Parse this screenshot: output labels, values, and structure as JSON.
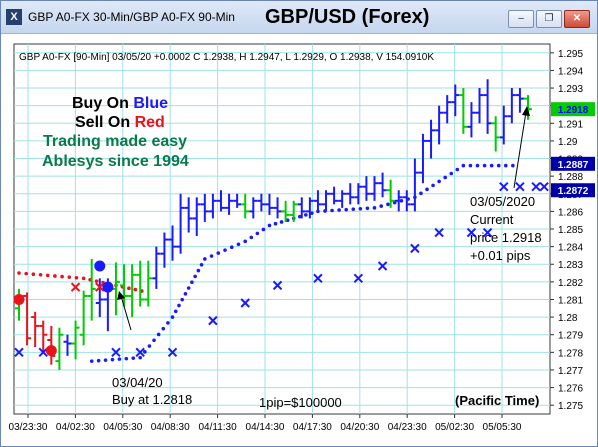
{
  "window": {
    "icon_letter": "X",
    "title": "GBP A0-FX 30-Min/GBP A0-FX 90-Min",
    "chart_title": "GBP/USD (Forex)",
    "buttons": [
      "minimize",
      "restore",
      "close"
    ]
  },
  "chart_data": {
    "type": "ohlc",
    "info_line": "GBP A0-FX [90-Min] 03/05/20 +0.0002 C 1.2938, H 1.2947, L 1.2929, O 1.2938, V 154.0910K",
    "ylim": [
      1.2745,
      1.2955
    ],
    "y_ticks": [
      "1.295",
      "1.294",
      "1.293",
      "1.292",
      "1.291",
      "1.29",
      "1.289",
      "1.288",
      "1.287",
      "1.286",
      "1.285",
      "1.284",
      "1.283",
      "1.282",
      "1.281",
      "1.28",
      "1.279",
      "1.278",
      "1.277",
      "1.276",
      "1.275"
    ],
    "x_ticks": [
      "03/23:30",
      "04/02:30",
      "04/05:30",
      "04/08:30",
      "04/11:30",
      "04/14:30",
      "04/17:30",
      "04/20:30",
      "04/23:30",
      "05/02:30",
      "05/05:30"
    ],
    "price_tags": [
      {
        "label": "1.2918",
        "value": 1.2918,
        "bg": "#00cc00",
        "fg": "#0000ff"
      },
      {
        "label": "1.2887",
        "value": 1.2887,
        "bg": "#0000aa",
        "fg": "#ffffff"
      },
      {
        "label": "1.2872",
        "value": 1.2872,
        "bg": "#0000aa",
        "fg": "#ffffff"
      }
    ],
    "bars": [
      {
        "x": "03/23:00",
        "o": 1.2805,
        "h": 1.2816,
        "l": 1.2798,
        "c": 1.2812,
        "color": "green"
      },
      {
        "x": "03/23:30",
        "o": 1.2812,
        "h": 1.2814,
        "l": 1.2784,
        "c": 1.2788,
        "color": "red"
      },
      {
        "x": "03/24:00",
        "o": 1.28,
        "h": 1.2803,
        "l": 1.2783,
        "c": 1.2795,
        "color": "red"
      },
      {
        "x": "04/00:30",
        "o": 1.2795,
        "h": 1.2798,
        "l": 1.278,
        "c": 1.279,
        "color": "red"
      },
      {
        "x": "04/01:00",
        "o": 1.2787,
        "h": 1.2795,
        "l": 1.2773,
        "c": 1.2778,
        "color": "red"
      },
      {
        "x": "04/01:30",
        "o": 1.2775,
        "h": 1.2794,
        "l": 1.277,
        "c": 1.279,
        "color": "green"
      },
      {
        "x": "04/02:00",
        "o": 1.2786,
        "h": 1.279,
        "l": 1.2778,
        "c": 1.2785,
        "color": "blue"
      },
      {
        "x": "04/02:30",
        "o": 1.2785,
        "h": 1.2798,
        "l": 1.2776,
        "c": 1.2794,
        "color": "green"
      },
      {
        "x": "04/03:00",
        "o": 1.279,
        "h": 1.2815,
        "l": 1.2784,
        "c": 1.2812,
        "color": "green"
      },
      {
        "x": "04/03:30",
        "o": 1.2812,
        "h": 1.2833,
        "l": 1.2798,
        "c": 1.2816,
        "color": "green"
      },
      {
        "x": "04/04:00",
        "o": 1.2808,
        "h": 1.2822,
        "l": 1.28,
        "c": 1.281,
        "color": "blue"
      },
      {
        "x": "04/04:30",
        "o": 1.281,
        "h": 1.2822,
        "l": 1.2792,
        "c": 1.2816,
        "color": "blue"
      },
      {
        "x": "04/05:00",
        "o": 1.2816,
        "h": 1.2831,
        "l": 1.2801,
        "c": 1.282,
        "color": "green"
      },
      {
        "x": "04/05:30",
        "o": 1.2818,
        "h": 1.283,
        "l": 1.2806,
        "c": 1.2812,
        "color": "green"
      },
      {
        "x": "04/06:00",
        "o": 1.2812,
        "h": 1.283,
        "l": 1.28,
        "c": 1.2824,
        "color": "green"
      },
      {
        "x": "04/06:30",
        "o": 1.2824,
        "h": 1.2832,
        "l": 1.2806,
        "c": 1.281,
        "color": "green"
      },
      {
        "x": "04/07:00",
        "o": 1.281,
        "h": 1.2832,
        "l": 1.2806,
        "c": 1.2822,
        "color": "green"
      },
      {
        "x": "04/07:30",
        "o": 1.2822,
        "h": 1.284,
        "l": 1.2816,
        "c": 1.2836,
        "color": "blue"
      },
      {
        "x": "04/08:00",
        "o": 1.2836,
        "h": 1.2848,
        "l": 1.2828,
        "c": 1.2844,
        "color": "blue"
      },
      {
        "x": "04/08:30",
        "o": 1.2844,
        "h": 1.2852,
        "l": 1.2832,
        "c": 1.284,
        "color": "blue"
      },
      {
        "x": "04/09:00",
        "o": 1.284,
        "h": 1.287,
        "l": 1.2836,
        "c": 1.2862,
        "color": "blue"
      },
      {
        "x": "04/09:30",
        "o": 1.2862,
        "h": 1.2868,
        "l": 1.2848,
        "c": 1.2856,
        "color": "blue"
      },
      {
        "x": "04/10:00",
        "o": 1.2856,
        "h": 1.2868,
        "l": 1.2846,
        "c": 1.2864,
        "color": "blue"
      },
      {
        "x": "04/10:30",
        "o": 1.2864,
        "h": 1.287,
        "l": 1.2854,
        "c": 1.286,
        "color": "blue"
      },
      {
        "x": "04/11:00",
        "o": 1.286,
        "h": 1.287,
        "l": 1.2856,
        "c": 1.2866,
        "color": "blue"
      },
      {
        "x": "04/11:30",
        "o": 1.2866,
        "h": 1.2872,
        "l": 1.286,
        "c": 1.2862,
        "color": "blue"
      },
      {
        "x": "04/12:00",
        "o": 1.2862,
        "h": 1.287,
        "l": 1.2858,
        "c": 1.2866,
        "color": "blue"
      },
      {
        "x": "04/12:30",
        "o": 1.2866,
        "h": 1.287,
        "l": 1.2862,
        "c": 1.2864,
        "color": "blue"
      },
      {
        "x": "04/13:00",
        "o": 1.2864,
        "h": 1.287,
        "l": 1.2856,
        "c": 1.286,
        "color": "green"
      },
      {
        "x": "04/13:30",
        "o": 1.286,
        "h": 1.2868,
        "l": 1.2856,
        "c": 1.2866,
        "color": "blue"
      },
      {
        "x": "04/14:00",
        "o": 1.2866,
        "h": 1.287,
        "l": 1.286,
        "c": 1.2864,
        "color": "blue"
      },
      {
        "x": "04/14:30",
        "o": 1.2864,
        "h": 1.287,
        "l": 1.2858,
        "c": 1.2862,
        "color": "blue"
      },
      {
        "x": "04/15:00",
        "o": 1.2862,
        "h": 1.2868,
        "l": 1.2856,
        "c": 1.286,
        "color": "blue"
      },
      {
        "x": "04/15:30",
        "o": 1.286,
        "h": 1.2866,
        "l": 1.2854,
        "c": 1.2858,
        "color": "green"
      },
      {
        "x": "04/16:00",
        "o": 1.2858,
        "h": 1.2866,
        "l": 1.2854,
        "c": 1.2864,
        "color": "green"
      },
      {
        "x": "04/16:30",
        "o": 1.2864,
        "h": 1.2868,
        "l": 1.2856,
        "c": 1.286,
        "color": "blue"
      },
      {
        "x": "04/17:00",
        "o": 1.286,
        "h": 1.2868,
        "l": 1.2856,
        "c": 1.2866,
        "color": "blue"
      },
      {
        "x": "04/17:30",
        "o": 1.2866,
        "h": 1.2872,
        "l": 1.286,
        "c": 1.2864,
        "color": "blue"
      },
      {
        "x": "04/18:00",
        "o": 1.2864,
        "h": 1.2872,
        "l": 1.286,
        "c": 1.287,
        "color": "blue"
      },
      {
        "x": "04/18:30",
        "o": 1.287,
        "h": 1.2874,
        "l": 1.2864,
        "c": 1.2866,
        "color": "blue"
      },
      {
        "x": "04/19:00",
        "o": 1.2866,
        "h": 1.2872,
        "l": 1.2862,
        "c": 1.287,
        "color": "blue"
      },
      {
        "x": "04/19:30",
        "o": 1.287,
        "h": 1.2876,
        "l": 1.2864,
        "c": 1.2868,
        "color": "blue"
      },
      {
        "x": "04/20:00",
        "o": 1.2868,
        "h": 1.2876,
        "l": 1.2864,
        "c": 1.2874,
        "color": "blue"
      },
      {
        "x": "04/20:30",
        "o": 1.2874,
        "h": 1.288,
        "l": 1.2866,
        "c": 1.287,
        "color": "blue"
      },
      {
        "x": "04/21:00",
        "o": 1.287,
        "h": 1.288,
        "l": 1.2866,
        "c": 1.2876,
        "color": "blue"
      },
      {
        "x": "04/21:30",
        "o": 1.2876,
        "h": 1.2882,
        "l": 1.2868,
        "c": 1.2872,
        "color": "blue"
      },
      {
        "x": "04/22:00",
        "o": 1.2872,
        "h": 1.2878,
        "l": 1.2862,
        "c": 1.2866,
        "color": "green"
      },
      {
        "x": "04/22:30",
        "o": 1.2866,
        "h": 1.2872,
        "l": 1.286,
        "c": 1.2868,
        "color": "blue"
      },
      {
        "x": "04/23:00",
        "o": 1.2868,
        "h": 1.2872,
        "l": 1.286,
        "c": 1.2864,
        "color": "blue"
      },
      {
        "x": "04/23:30",
        "o": 1.2864,
        "h": 1.289,
        "l": 1.286,
        "c": 1.2882,
        "color": "blue"
      },
      {
        "x": "05/00:00",
        "o": 1.2882,
        "h": 1.2904,
        "l": 1.2876,
        "c": 1.29,
        "color": "blue"
      },
      {
        "x": "05/00:30",
        "o": 1.29,
        "h": 1.2912,
        "l": 1.289,
        "c": 1.2906,
        "color": "blue"
      },
      {
        "x": "05/01:00",
        "o": 1.2906,
        "h": 1.292,
        "l": 1.2898,
        "c": 1.2916,
        "color": "blue"
      },
      {
        "x": "05/01:30",
        "o": 1.2916,
        "h": 1.2926,
        "l": 1.291,
        "c": 1.2922,
        "color": "blue"
      },
      {
        "x": "05/02:00",
        "o": 1.2922,
        "h": 1.2932,
        "l": 1.2914,
        "c": 1.2926,
        "color": "blue"
      },
      {
        "x": "05/02:30",
        "o": 1.2926,
        "h": 1.293,
        "l": 1.2904,
        "c": 1.2908,
        "color": "green"
      },
      {
        "x": "05/03:00",
        "o": 1.2908,
        "h": 1.2922,
        "l": 1.2902,
        "c": 1.2916,
        "color": "blue"
      },
      {
        "x": "05/03:30",
        "o": 1.2916,
        "h": 1.293,
        "l": 1.291,
        "c": 1.2926,
        "color": "blue"
      },
      {
        "x": "05/04:00",
        "o": 1.2926,
        "h": 1.2935,
        "l": 1.2904,
        "c": 1.291,
        "color": "blue"
      },
      {
        "x": "05/04:30",
        "o": 1.291,
        "h": 1.2914,
        "l": 1.2894,
        "c": 1.2902,
        "color": "green"
      },
      {
        "x": "05/05:00",
        "o": 1.2902,
        "h": 1.292,
        "l": 1.2898,
        "c": 1.2914,
        "color": "blue"
      },
      {
        "x": "05/05:30",
        "o": 1.2914,
        "h": 1.293,
        "l": 1.291,
        "c": 1.2926,
        "color": "blue"
      },
      {
        "x": "05/06:00",
        "o": 1.2926,
        "h": 1.293,
        "l": 1.2916,
        "c": 1.2924,
        "color": "blue"
      },
      {
        "x": "05/06:30",
        "o": 1.2924,
        "h": 1.2926,
        "l": 1.2912,
        "c": 1.2918,
        "color": "green"
      }
    ],
    "dotted_bands": [
      {
        "name": "red",
        "color": "#e8141c",
        "points": [
          [
            0,
            1.2825
          ],
          [
            8,
            1.2822
          ],
          [
            12,
            1.2818
          ],
          [
            16,
            1.2814
          ]
        ]
      },
      {
        "name": "blue",
        "color": "#1a1aff",
        "points": [
          [
            9,
            1.2775
          ],
          [
            15,
            1.2777
          ],
          [
            19,
            1.28
          ],
          [
            23,
            1.2833
          ],
          [
            28,
            1.2843
          ],
          [
            31,
            1.2852
          ],
          [
            34,
            1.2856
          ],
          [
            37,
            1.286
          ],
          [
            44,
            1.2862
          ],
          [
            49,
            1.2868
          ],
          [
            55,
            1.2886
          ],
          [
            62,
            1.2886
          ]
        ]
      }
    ],
    "x_markers": [
      {
        "i": 0,
        "v": 1.278,
        "color": "#1a1aff"
      },
      {
        "i": 3,
        "v": 1.278,
        "color": "#1a1aff"
      },
      {
        "i": 7,
        "v": 1.2817,
        "color": "#e8141c"
      },
      {
        "i": 10,
        "v": 1.2817,
        "color": "#e8141c"
      },
      {
        "i": 12,
        "v": 1.278,
        "color": "#1a1aff"
      },
      {
        "i": 15,
        "v": 1.278,
        "color": "#1a1aff"
      },
      {
        "i": 19,
        "v": 1.278,
        "color": "#1a1aff"
      },
      {
        "i": 24,
        "v": 1.2798,
        "color": "#1a1aff"
      },
      {
        "i": 28,
        "v": 1.2808,
        "color": "#1a1aff"
      },
      {
        "i": 32,
        "v": 1.2818,
        "color": "#1a1aff"
      },
      {
        "i": 37,
        "v": 1.2822,
        "color": "#1a1aff"
      },
      {
        "i": 42,
        "v": 1.2822,
        "color": "#1a1aff"
      },
      {
        "i": 45,
        "v": 1.2829,
        "color": "#1a1aff"
      },
      {
        "i": 49,
        "v": 1.2839,
        "color": "#1a1aff"
      },
      {
        "i": 52,
        "v": 1.2848,
        "color": "#1a1aff"
      },
      {
        "i": 56,
        "v": 1.2848,
        "color": "#1a1aff"
      },
      {
        "i": 58,
        "v": 1.2848,
        "color": "#1a1aff"
      },
      {
        "i": 60,
        "v": 1.2874,
        "color": "#1a1aff"
      },
      {
        "i": 62,
        "v": 1.2874,
        "color": "#1a1aff"
      },
      {
        "i": 64,
        "v": 1.2874,
        "color": "#1a1aff"
      },
      {
        "i": 65,
        "v": 1.2874,
        "color": "#1a1aff"
      }
    ],
    "big_dots": [
      {
        "i": 0,
        "v": 1.281,
        "color": "#e8141c"
      },
      {
        "i": 4,
        "v": 1.2781,
        "color": "#e8141c"
      },
      {
        "i": 10,
        "v": 1.2829,
        "color": "#1a1aff"
      },
      {
        "i": 11,
        "v": 1.2817,
        "color": "#1a1aff"
      }
    ],
    "annotations": {
      "buy_on": "Buy On",
      "blue": "Blue",
      "sell_on": "Sell On",
      "red": "Red",
      "trading": "Trading made easy",
      "ablesys": "Ablesys since 1994",
      "buy_date": "03/04/20",
      "buy_at": "Buy at 1.2818",
      "current_date": "03/05/2020",
      "current": "Current",
      "current_price": "price 1.2918",
      "pips": "+0.01 pips",
      "pip_value": "1pip=$100000",
      "timezone": "(Pacific Time)"
    },
    "colors": {
      "grid": "#9fe3e7",
      "up": "#00cc00",
      "down": "#e8141c",
      "neutral": "#1a1aff",
      "text_green": "#0a7a4a"
    }
  }
}
